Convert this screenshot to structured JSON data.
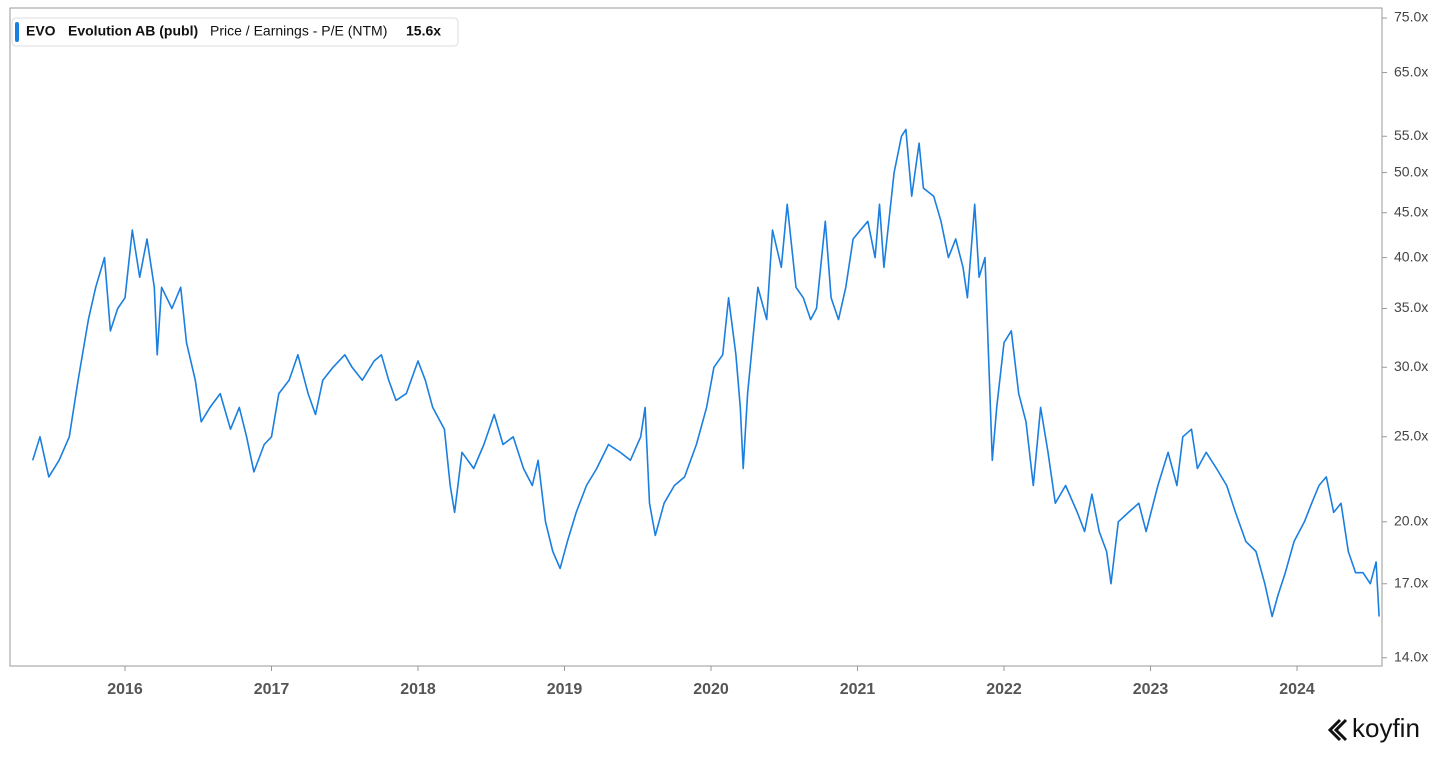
{
  "chart_data": {
    "type": "line",
    "legend": {
      "ticker": "EVO",
      "company": "Evolution AB (publ)",
      "metric": "Price / Earnings - P/E (NTM)",
      "current": "15.6x"
    },
    "watermark": "koyfin",
    "log_scale": true,
    "xlim": [
      2015.215,
      2024.58
    ],
    "xticks": [
      2016,
      2017,
      2018,
      2019,
      2020,
      2021,
      2022,
      2023,
      2024
    ],
    "ylim": [
      13.7,
      77
    ],
    "yticks": [
      {
        "value": 14,
        "label": "14.0x"
      },
      {
        "value": 17,
        "label": "17.0x"
      },
      {
        "value": 20,
        "label": "20.0x"
      },
      {
        "value": 25,
        "label": "25.0x"
      },
      {
        "value": 30,
        "label": "30.0x"
      },
      {
        "value": 35,
        "label": "35.0x"
      },
      {
        "value": 40,
        "label": "40.0x"
      },
      {
        "value": 45,
        "label": "45.0x"
      },
      {
        "value": 50,
        "label": "50.0x"
      },
      {
        "value": 55,
        "label": "55.0x"
      },
      {
        "value": 65,
        "label": "65.0x"
      },
      {
        "value": 75,
        "label": "75.0x"
      }
    ],
    "series": [
      {
        "color": "#1a7fe0",
        "x": [
          2015.37,
          2015.42,
          2015.48,
          2015.55,
          2015.62,
          2015.68,
          2015.75,
          2015.8,
          2015.86,
          2015.9,
          2015.95,
          2016.0,
          2016.05,
          2016.1,
          2016.15,
          2016.2,
          2016.22,
          2016.25,
          2016.32,
          2016.38,
          2016.42,
          2016.48,
          2016.52,
          2016.58,
          2016.65,
          2016.72,
          2016.78,
          2016.83,
          2016.88,
          2016.95,
          2017.0,
          2017.05,
          2017.12,
          2017.18,
          2017.25,
          2017.3,
          2017.35,
          2017.42,
          2017.5,
          2017.55,
          2017.62,
          2017.7,
          2017.75,
          2017.8,
          2017.85,
          2017.92,
          2018.0,
          2018.05,
          2018.1,
          2018.18,
          2018.22,
          2018.25,
          2018.3,
          2018.38,
          2018.45,
          2018.52,
          2018.58,
          2018.65,
          2018.72,
          2018.78,
          2018.82,
          2018.87,
          2018.92,
          2018.97,
          2019.02,
          2019.08,
          2019.15,
          2019.22,
          2019.3,
          2019.38,
          2019.45,
          2019.52,
          2019.55,
          2019.58,
          2019.62,
          2019.68,
          2019.75,
          2019.82,
          2019.9,
          2019.97,
          2020.02,
          2020.08,
          2020.12,
          2020.17,
          2020.2,
          2020.22,
          2020.25,
          2020.32,
          2020.38,
          2020.42,
          2020.48,
          2020.52,
          2020.58,
          2020.63,
          2020.68,
          2020.72,
          2020.78,
          2020.82,
          2020.87,
          2020.92,
          2020.97,
          2021.02,
          2021.07,
          2021.12,
          2021.15,
          2021.18,
          2021.25,
          2021.3,
          2021.33,
          2021.37,
          2021.42,
          2021.45,
          2021.52,
          2021.57,
          2021.62,
          2021.67,
          2021.72,
          2021.75,
          2021.8,
          2021.83,
          2021.87,
          2021.92,
          2021.95,
          2022.0,
          2022.05,
          2022.1,
          2022.15,
          2022.2,
          2022.25,
          2022.3,
          2022.35,
          2022.42,
          2022.5,
          2022.55,
          2022.6,
          2022.65,
          2022.7,
          2022.73,
          2022.78,
          2022.85,
          2022.92,
          2022.97,
          2023.05,
          2023.12,
          2023.18,
          2023.22,
          2023.28,
          2023.32,
          2023.38,
          2023.45,
          2023.52,
          2023.58,
          2023.65,
          2023.72,
          2023.78,
          2023.83,
          2023.87,
          2023.92,
          2023.98,
          2024.05,
          2024.1,
          2024.15,
          2024.2,
          2024.25,
          2024.3,
          2024.35,
          2024.4,
          2024.45,
          2024.5,
          2024.54,
          2024.56
        ],
        "values": [
          23.5,
          25,
          22.5,
          23.5,
          25,
          29,
          34,
          37,
          40,
          33,
          35,
          36,
          43,
          38,
          42,
          37,
          31,
          37,
          35,
          37,
          32,
          29,
          26,
          27,
          28,
          25.5,
          27,
          25,
          22.8,
          24.5,
          25,
          28,
          29,
          31,
          28,
          26.5,
          29,
          30,
          31,
          30,
          29,
          30.5,
          31,
          29,
          27.5,
          28,
          30.5,
          29,
          27,
          25.5,
          22,
          20.5,
          24,
          23,
          24.5,
          26.5,
          24.5,
          25,
          23,
          22,
          23.5,
          20,
          18.5,
          17.7,
          19,
          20.5,
          22,
          23,
          24.5,
          24,
          23.5,
          25,
          27,
          21,
          19.3,
          21,
          22,
          22.5,
          24.5,
          27,
          30,
          31,
          36,
          31,
          27,
          23,
          28,
          37,
          34,
          43,
          39,
          46,
          37,
          36,
          34,
          35,
          44,
          36,
          34,
          37,
          42,
          43,
          44,
          40,
          46,
          39,
          50,
          55,
          56,
          47,
          54,
          48,
          47,
          44,
          40,
          42,
          39,
          36,
          46,
          38,
          40,
          23.5,
          27,
          32,
          33,
          28,
          26,
          22,
          27,
          24,
          21,
          22,
          20.5,
          19.5,
          21.5,
          19.5,
          18.5,
          17,
          20,
          20.5,
          21,
          19.5,
          22,
          24,
          22,
          25,
          25.5,
          23,
          24,
          23,
          22,
          20.5,
          19,
          18.5,
          17,
          15.6,
          16.5,
          17.5,
          19,
          20,
          21,
          22,
          22.5,
          20.5,
          21,
          18.5,
          17.5,
          17.5,
          17,
          18,
          15.6
        ]
      }
    ]
  }
}
